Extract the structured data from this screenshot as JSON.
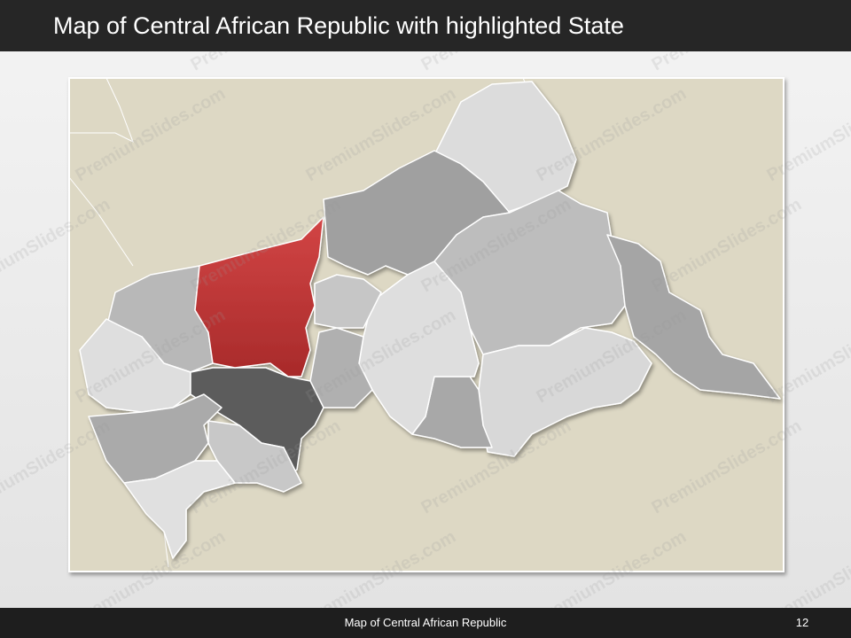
{
  "header": {
    "title": "Map of Central African Republic with highlighted State"
  },
  "footer": {
    "text": "Map of Central African Republic",
    "page_number": "12"
  },
  "watermark": "PremiumSlides.com"
}
